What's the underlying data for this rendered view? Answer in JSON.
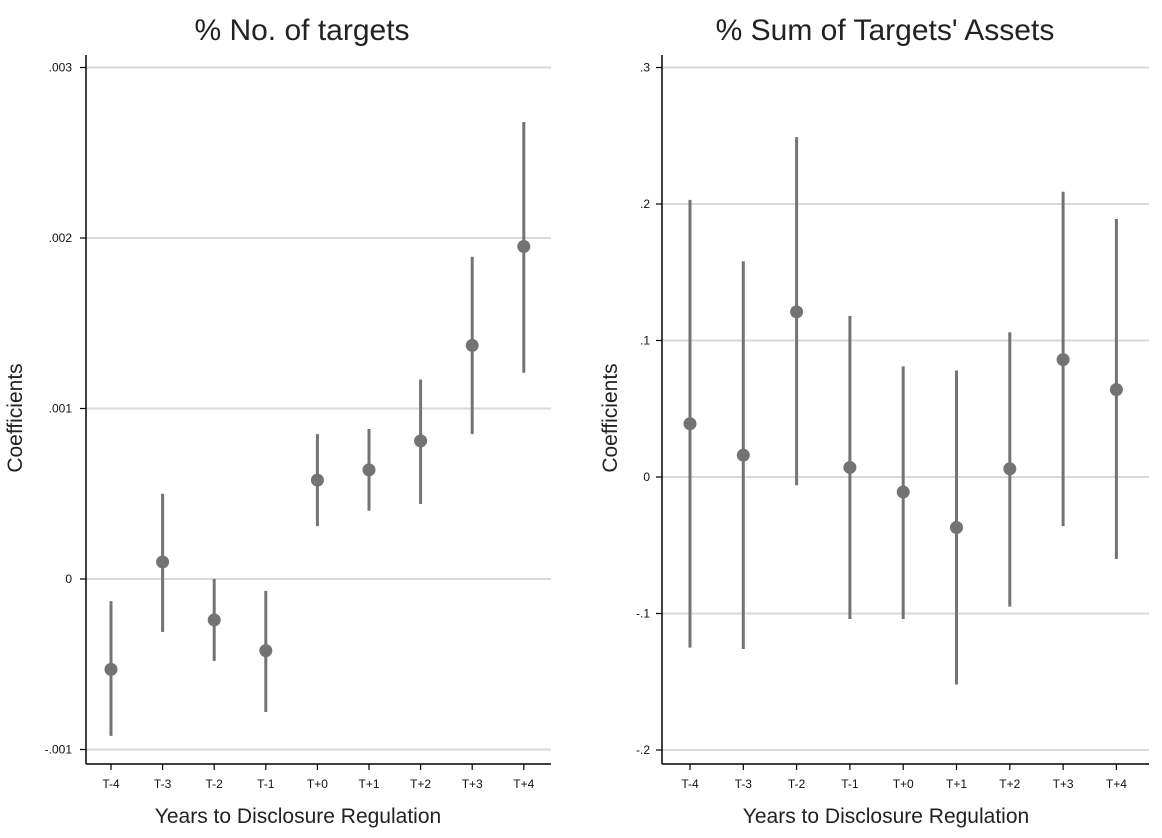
{
  "chart_data": [
    {
      "type": "scatter",
      "title": "% No. of targets",
      "xlabel": "Years to Disclosure Regulation",
      "ylabel": "Coefficients",
      "categories": [
        "T-4",
        "T-3",
        "T-2",
        "T-1",
        "T+0",
        "T+1",
        "T+2",
        "T+3",
        "T+4"
      ],
      "yticks": [
        -0.001,
        0,
        0.001,
        0.002,
        0.003
      ],
      "ytick_labels": [
        "-.001",
        "0",
        ".001",
        ".002",
        ".003"
      ],
      "ylim": [
        -0.00107,
        0.0031
      ],
      "grid": true,
      "series": [
        {
          "values": [
            -0.00053,
            0.0001,
            -0.00024,
            -0.00042,
            0.00058,
            0.00064,
            0.00081,
            0.00137,
            0.00195
          ],
          "ci_low": [
            -0.00092,
            -0.00031,
            -0.00048,
            -0.00078,
            0.00031,
            0.0004,
            0.00044,
            0.00085,
            0.00121
          ],
          "ci_high": [
            -0.00013,
            0.0005,
            0.0,
            -7e-05,
            0.00085,
            0.00088,
            0.00117,
            0.00189,
            0.00268
          ],
          "color": "#737373"
        }
      ]
    },
    {
      "type": "scatter",
      "title": "% Sum of Targets' Assets",
      "xlabel": "Years to Disclosure Regulation",
      "ylabel": "Coefficients",
      "categories": [
        "T-4",
        "T-3",
        "T-2",
        "T-1",
        "T+0",
        "T+1",
        "T+2",
        "T+3",
        "T+4"
      ],
      "yticks": [
        -0.2,
        -0.1,
        0,
        0.1,
        0.2,
        0.3
      ],
      "ytick_labels": [
        "-.2",
        "-.1",
        "0",
        ".1",
        ".2",
        ".3"
      ],
      "ylim": [
        -0.211,
        0.3
      ],
      "grid": true,
      "series": [
        {
          "values": [
            0.039,
            0.016,
            0.121,
            0.007,
            -0.011,
            -0.037,
            0.006,
            0.086,
            0.064
          ],
          "ci_low": [
            -0.125,
            -0.126,
            -0.006,
            -0.104,
            -0.104,
            -0.152,
            -0.095,
            -0.036,
            -0.06
          ],
          "ci_high": [
            0.203,
            0.158,
            0.249,
            0.118,
            0.081,
            0.078,
            0.106,
            0.209,
            0.189
          ],
          "color": "#737373"
        }
      ]
    }
  ]
}
